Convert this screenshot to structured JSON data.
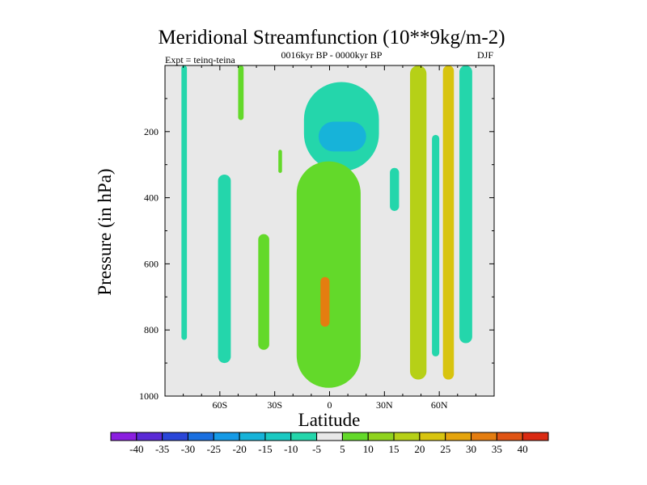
{
  "chart_data": {
    "type": "contour",
    "title": "Meridional Streamfunction (10**9kg/m-2)",
    "subtitle": "0016kyr BP - 0000kyr BP",
    "left_label": "Expt = teinq-teina",
    "right_label": "DJF",
    "xlabel": "Latitude",
    "ylabel": "Pressure (in hPa)",
    "xlim": [
      -90,
      90
    ],
    "ylim": [
      1000,
      0
    ],
    "x_ticks": [
      {
        "value": -60,
        "label": "60S"
      },
      {
        "value": -30,
        "label": "30S"
      },
      {
        "value": 0,
        "label": "0"
      },
      {
        "value": 30,
        "label": "30N"
      },
      {
        "value": 60,
        "label": "60N"
      }
    ],
    "y_ticks": [
      {
        "value": 200,
        "label": "200"
      },
      {
        "value": 400,
        "label": "400"
      },
      {
        "value": 600,
        "label": "600"
      },
      {
        "value": 800,
        "label": "800"
      },
      {
        "value": 1000,
        "label": "1000"
      }
    ],
    "background_color": "#e8e8e8",
    "colorbar": {
      "bins": [
        {
          "label": "-40",
          "color": "#8b1fe0"
        },
        {
          "label": "-35",
          "color": "#5a2ad6"
        },
        {
          "label": "-30",
          "color": "#2a46d8"
        },
        {
          "label": "-25",
          "color": "#1a6fe0"
        },
        {
          "label": "-20",
          "color": "#159ae6"
        },
        {
          "label": "-15",
          "color": "#17b3d9"
        },
        {
          "label": "-10",
          "color": "#1bc9c2"
        },
        {
          "label": "-5",
          "color": "#24d6ab"
        },
        {
          "label": "5",
          "color": "#e8e8e8"
        },
        {
          "label": "10",
          "color": "#63d92a"
        },
        {
          "label": "15",
          "color": "#8fd31e"
        },
        {
          "label": "20",
          "color": "#b6d017"
        },
        {
          "label": "25",
          "color": "#d8c40f"
        },
        {
          "label": "30",
          "color": "#e5a40d"
        },
        {
          "label": "35",
          "color": "#e47d10"
        },
        {
          "label": "40",
          "color": "#e05414"
        },
        {
          "label": "",
          "color": "#da2a12"
        }
      ]
    },
    "regions": [
      {
        "name": "sh-polar-upper",
        "value": -5,
        "lat_range": [
          -81,
          -78
        ],
        "p_range": [
          0,
          830
        ]
      },
      {
        "name": "sh-small-upper",
        "value": 10,
        "lat_range": [
          -50,
          -47
        ],
        "p_range": [
          0,
          165
        ]
      },
      {
        "name": "sh-60s-band",
        "value": -5,
        "lat_range": [
          -61,
          -54
        ],
        "p_range": [
          330,
          900
        ]
      },
      {
        "name": "sh-30s-band",
        "value": 10,
        "lat_range": [
          -39,
          -33
        ],
        "p_range": [
          510,
          860
        ]
      },
      {
        "name": "sh-upper-sliver",
        "value": 10,
        "lat_range": [
          -28,
          -26
        ],
        "p_range": [
          255,
          325
        ]
      },
      {
        "name": "eq-upper-cell",
        "value": -5,
        "lat_range": [
          -14,
          27
        ],
        "p_range": [
          50,
          320
        ]
      },
      {
        "name": "eq-upper-core",
        "value": -15,
        "lat_range": [
          -6,
          20
        ],
        "p_range": [
          170,
          260
        ]
      },
      {
        "name": "hadley-cell",
        "value": 10,
        "lat_range": [
          -18,
          17
        ],
        "p_range": [
          290,
          975
        ]
      },
      {
        "name": "hadley-core",
        "value": 35,
        "lat_range": [
          -5,
          0
        ],
        "p_range": [
          640,
          790
        ]
      },
      {
        "name": "nh-30n-sliver",
        "value": -5,
        "lat_range": [
          33,
          38
        ],
        "p_range": [
          310,
          440
        ]
      },
      {
        "name": "nh-45n-band",
        "value": 20,
        "lat_range": [
          44,
          53
        ],
        "p_range": [
          0,
          950
        ]
      },
      {
        "name": "nh-55n-band",
        "value": -5,
        "lat_range": [
          56,
          60
        ],
        "p_range": [
          210,
          880
        ]
      },
      {
        "name": "nh-60n-band",
        "value": 25,
        "lat_range": [
          62,
          68
        ],
        "p_range": [
          0,
          950
        ]
      },
      {
        "name": "nh-70n-band",
        "value": -5,
        "lat_range": [
          71,
          78
        ],
        "p_range": [
          0,
          840
        ]
      }
    ]
  }
}
